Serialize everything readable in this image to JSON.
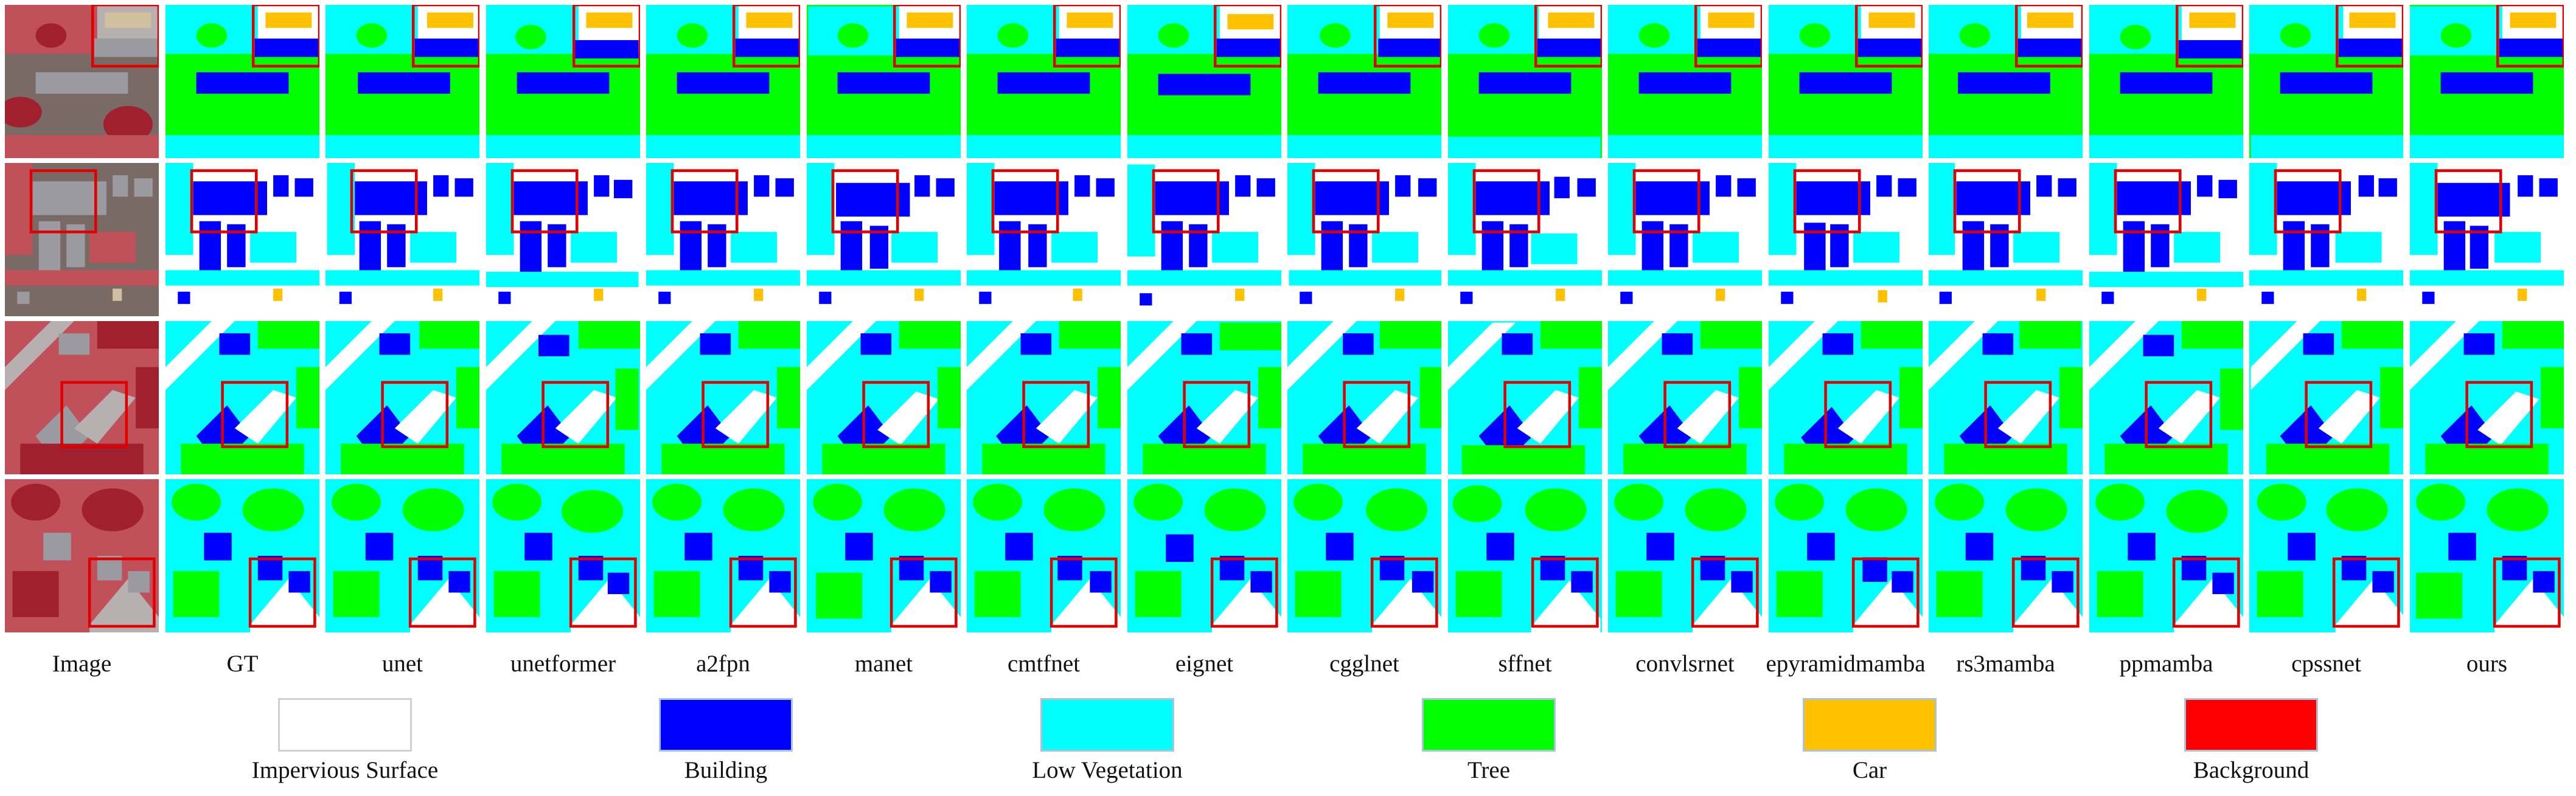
{
  "columns": [
    "Image",
    "GT",
    "unet",
    "unetformer",
    "a2fpn",
    "manet",
    "cmtfnet",
    "eignet",
    "cgglnet",
    "sffnet",
    "convlsrnet",
    "epyramidmamba",
    "rs3mamba",
    "ppmamba",
    "cpssnet",
    "ours"
  ],
  "rows": 4,
  "legend": [
    {
      "label": "Impervious Surface",
      "color": "#ffffff"
    },
    {
      "label": "Building",
      "color": "#0000ff"
    },
    {
      "label": "Low Vegetation",
      "color": "#00ffff"
    },
    {
      "label": "Tree",
      "color": "#00ff00"
    },
    {
      "label": "Car",
      "color": "#ffc000"
    },
    {
      "label": "Background",
      "color": "#ff0000"
    }
  ],
  "highlight_box_color": "#e00000"
}
